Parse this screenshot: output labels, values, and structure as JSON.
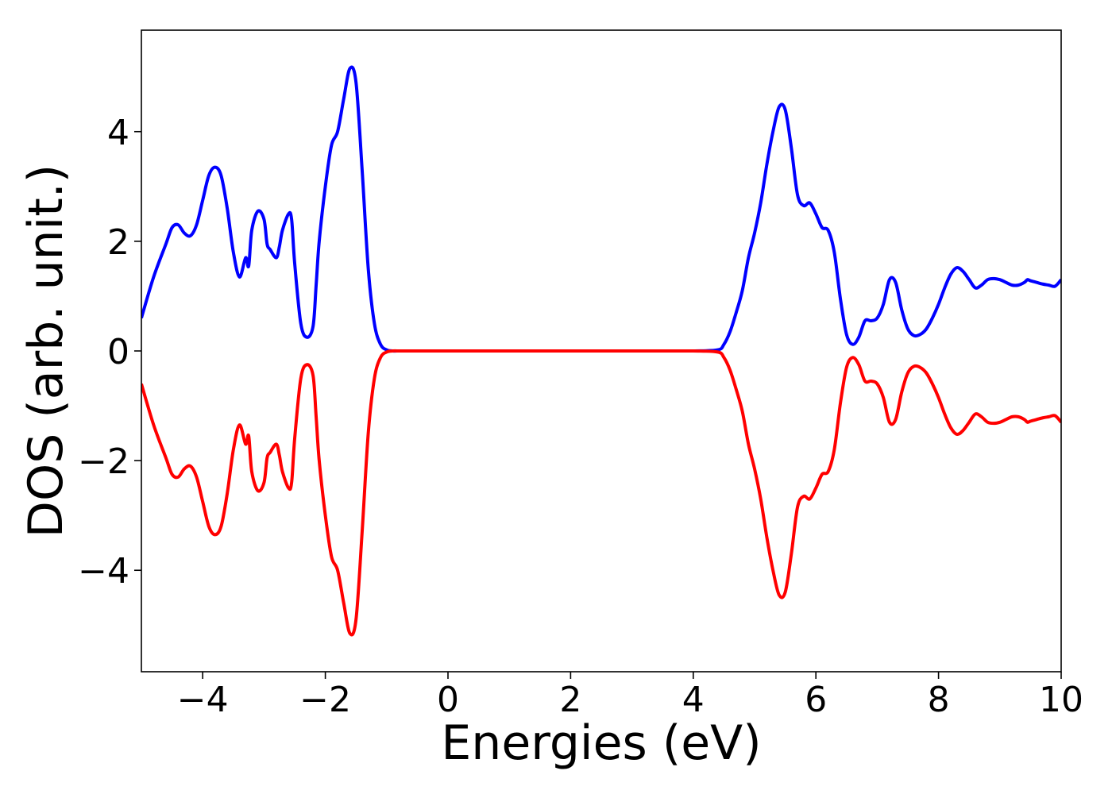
{
  "chart_data": {
    "type": "line",
    "title": "",
    "xlabel": "Energies (eV)",
    "ylabel": "DOS (arb. unit.)",
    "xlim": [
      -5,
      10
    ],
    "ylim": [
      -5.85,
      5.85
    ],
    "grid": false,
    "legend": "none",
    "xticks": [
      -4,
      -2,
      0,
      2,
      4,
      6,
      8,
      10
    ],
    "xtick_labels": [
      "−4",
      "−2",
      "0",
      "2",
      "4",
      "6",
      "8",
      "10"
    ],
    "yticks": [
      -4,
      -2,
      0,
      2,
      4
    ],
    "ytick_labels": [
      "−4",
      "−2",
      "0",
      "2",
      "4"
    ],
    "series": [
      {
        "color": "#0000ff",
        "x": [
          -5.0,
          -4.8,
          -4.6,
          -4.5,
          -4.4,
          -4.3,
          -4.2,
          -4.1,
          -4.0,
          -3.9,
          -3.8,
          -3.7,
          -3.6,
          -3.5,
          -3.4,
          -3.3,
          -3.25,
          -3.2,
          -3.1,
          -3.0,
          -2.95,
          -2.9,
          -2.8,
          -2.75,
          -2.7,
          -2.6,
          -2.55,
          -2.5,
          -2.4,
          -2.3,
          -2.2,
          -2.15,
          -2.1,
          -2.0,
          -1.9,
          -1.8,
          -1.7,
          -1.6,
          -1.5,
          -1.4,
          -1.3,
          -1.2,
          -1.1,
          -1.0,
          -0.9,
          -0.8,
          -0.7,
          -0.6,
          -0.5,
          0.0,
          1.0,
          2.0,
          3.0,
          4.0,
          4.4,
          4.5,
          4.6,
          4.7,
          4.8,
          4.9,
          5.0,
          5.1,
          5.2,
          5.3,
          5.4,
          5.5,
          5.6,
          5.7,
          5.8,
          5.9,
          6.0,
          6.1,
          6.2,
          6.3,
          6.4,
          6.5,
          6.6,
          6.7,
          6.8,
          6.9,
          7.0,
          7.1,
          7.2,
          7.3,
          7.4,
          7.5,
          7.6,
          7.7,
          7.8,
          7.9,
          8.0,
          8.1,
          8.2,
          8.3,
          8.4,
          8.5,
          8.6,
          8.7,
          8.8,
          8.9,
          9.0,
          9.1,
          9.2,
          9.3,
          9.4,
          9.45,
          9.5,
          9.6,
          9.7,
          9.8,
          9.9,
          10.0
        ],
        "y": [
          0.6,
          1.35,
          1.95,
          2.25,
          2.3,
          2.15,
          2.1,
          2.3,
          2.75,
          3.2,
          3.35,
          3.2,
          2.6,
          1.8,
          1.35,
          1.7,
          1.55,
          2.2,
          2.55,
          2.4,
          1.95,
          1.85,
          1.7,
          1.9,
          2.2,
          2.5,
          2.4,
          1.6,
          0.5,
          0.25,
          0.45,
          1.2,
          2.0,
          3.0,
          3.75,
          4.0,
          4.6,
          5.15,
          4.9,
          3.3,
          1.5,
          0.5,
          0.12,
          0.02,
          0.0,
          0.0,
          0.0,
          0.0,
          0.0,
          0.0,
          0.0,
          0.0,
          0.0,
          0.0,
          0.02,
          0.12,
          0.35,
          0.7,
          1.1,
          1.7,
          2.15,
          2.7,
          3.4,
          4.0,
          4.45,
          4.4,
          3.7,
          2.85,
          2.65,
          2.7,
          2.5,
          2.25,
          2.2,
          1.8,
          0.95,
          0.3,
          0.12,
          0.25,
          0.55,
          0.55,
          0.6,
          0.85,
          1.3,
          1.25,
          0.75,
          0.4,
          0.28,
          0.3,
          0.4,
          0.6,
          0.85,
          1.15,
          1.4,
          1.52,
          1.45,
          1.3,
          1.15,
          1.2,
          1.3,
          1.32,
          1.3,
          1.25,
          1.2,
          1.2,
          1.25,
          1.3,
          1.28,
          1.25,
          1.22,
          1.2,
          1.18,
          1.3
        ]
      },
      {
        "color": "#ff0000",
        "x": [
          -5.0,
          -4.8,
          -4.6,
          -4.5,
          -4.4,
          -4.3,
          -4.2,
          -4.1,
          -4.0,
          -3.9,
          -3.8,
          -3.7,
          -3.6,
          -3.5,
          -3.4,
          -3.3,
          -3.25,
          -3.2,
          -3.1,
          -3.0,
          -2.95,
          -2.9,
          -2.8,
          -2.75,
          -2.7,
          -2.6,
          -2.55,
          -2.5,
          -2.4,
          -2.3,
          -2.2,
          -2.15,
          -2.1,
          -2.0,
          -1.9,
          -1.8,
          -1.7,
          -1.6,
          -1.5,
          -1.4,
          -1.3,
          -1.2,
          -1.1,
          -1.0,
          -0.9,
          -0.8,
          -0.7,
          -0.6,
          -0.5,
          0.0,
          1.0,
          2.0,
          3.0,
          4.0,
          4.4,
          4.5,
          4.6,
          4.7,
          4.8,
          4.9,
          5.0,
          5.1,
          5.2,
          5.3,
          5.4,
          5.5,
          5.6,
          5.7,
          5.8,
          5.9,
          6.0,
          6.1,
          6.2,
          6.3,
          6.4,
          6.5,
          6.6,
          6.7,
          6.8,
          6.9,
          7.0,
          7.1,
          7.2,
          7.3,
          7.4,
          7.5,
          7.6,
          7.7,
          7.8,
          7.9,
          8.0,
          8.1,
          8.2,
          8.3,
          8.4,
          8.5,
          8.6,
          8.7,
          8.8,
          8.9,
          9.0,
          9.1,
          9.2,
          9.3,
          9.4,
          9.45,
          9.5,
          9.6,
          9.7,
          9.8,
          9.9,
          10.0
        ],
        "y": [
          -0.6,
          -1.35,
          -1.95,
          -2.25,
          -2.3,
          -2.15,
          -2.1,
          -2.3,
          -2.75,
          -3.2,
          -3.35,
          -3.2,
          -2.6,
          -1.8,
          -1.35,
          -1.7,
          -1.55,
          -2.2,
          -2.55,
          -2.4,
          -1.95,
          -1.85,
          -1.7,
          -1.9,
          -2.2,
          -2.5,
          -2.4,
          -1.6,
          -0.5,
          -0.25,
          -0.45,
          -1.2,
          -2.0,
          -3.0,
          -3.75,
          -4.0,
          -4.6,
          -5.15,
          -4.9,
          -3.3,
          -1.5,
          -0.5,
          -0.12,
          -0.02,
          0.0,
          0.0,
          0.0,
          0.0,
          0.0,
          0.0,
          0.0,
          0.0,
          0.0,
          0.0,
          -0.02,
          -0.12,
          -0.35,
          -0.7,
          -1.1,
          -1.7,
          -2.15,
          -2.7,
          -3.4,
          -4.0,
          -4.45,
          -4.4,
          -3.7,
          -2.85,
          -2.65,
          -2.7,
          -2.5,
          -2.25,
          -2.2,
          -1.8,
          -0.95,
          -0.3,
          -0.12,
          -0.25,
          -0.55,
          -0.55,
          -0.6,
          -0.85,
          -1.3,
          -1.25,
          -0.75,
          -0.4,
          -0.28,
          -0.3,
          -0.4,
          -0.6,
          -0.85,
          -1.15,
          -1.4,
          -1.52,
          -1.45,
          -1.3,
          -1.15,
          -1.2,
          -1.3,
          -1.32,
          -1.3,
          -1.25,
          -1.2,
          -1.2,
          -1.25,
          -1.3,
          -1.28,
          -1.25,
          -1.22,
          -1.2,
          -1.18,
          -1.3
        ]
      }
    ]
  }
}
